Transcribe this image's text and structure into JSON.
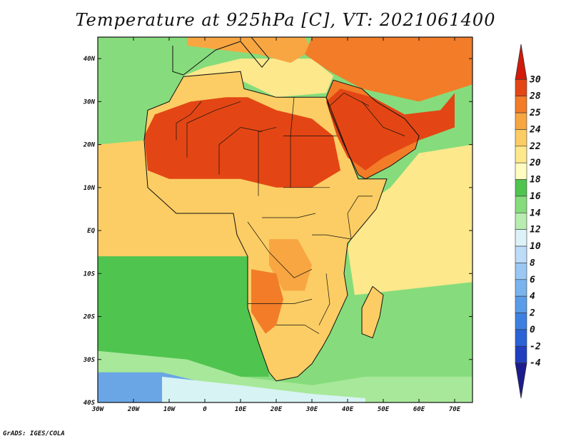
{
  "title": "Temperature at 925hPa [C], VT: 2021061400",
  "credit": "GrADS: IGES/COLA",
  "map": {
    "lon_range": [
      -30,
      75
    ],
    "lat_range": [
      -40,
      45
    ],
    "lon_ticks": [
      {
        "value": -30,
        "label": "30W"
      },
      {
        "value": -20,
        "label": "20W"
      },
      {
        "value": -10,
        "label": "10W"
      },
      {
        "value": 0,
        "label": "0"
      },
      {
        "value": 10,
        "label": "10E"
      },
      {
        "value": 20,
        "label": "20E"
      },
      {
        "value": 30,
        "label": "30E"
      },
      {
        "value": 40,
        "label": "40E"
      },
      {
        "value": 50,
        "label": "50E"
      },
      {
        "value": 60,
        "label": "60E"
      },
      {
        "value": 70,
        "label": "70E"
      }
    ],
    "lat_ticks": [
      {
        "value": 40,
        "label": "40N"
      },
      {
        "value": 30,
        "label": "30N"
      },
      {
        "value": 20,
        "label": "20N"
      },
      {
        "value": 10,
        "label": "10N"
      },
      {
        "value": 0,
        "label": "EQ"
      },
      {
        "value": -10,
        "label": "10S"
      },
      {
        "value": -20,
        "label": "20S"
      },
      {
        "value": -30,
        "label": "30S"
      },
      {
        "value": -40,
        "label": "40S"
      }
    ]
  },
  "colorbar": {
    "levels": [
      "-4",
      "-2",
      "0",
      "2",
      "4",
      "6",
      "8",
      "10",
      "12",
      "14",
      "16",
      "18",
      "20",
      "22",
      "24",
      "25",
      "28",
      "30"
    ],
    "colors": [
      "#1c1c8c",
      "#1f3fbf",
      "#2a63d6",
      "#3d80e0",
      "#5a9ce8",
      "#79b4ef",
      "#9ac8f3",
      "#bcdcf8",
      "#ddf2f8",
      "#b8ecb0",
      "#86dc7c",
      "#4fc44f",
      "#fffcc0",
      "#fde88c",
      "#fbcd64",
      "#f8a642",
      "#f27c28",
      "#e34614",
      "#d11a0a"
    ]
  },
  "colors": {
    "ocean_south_cold": "#6aa6e6",
    "ocean_south_cool": "#d7f3f3",
    "ocean_green": "#4fc44f",
    "ocean_light_green": "#a8e89a",
    "tropical_sea": "#fbcd64",
    "warm_sea": "#fde88c",
    "sahara_hot": "#e34614",
    "arabia_hot": "#e34614",
    "orange": "#f8a642",
    "deep_orange": "#f27c28",
    "boundaries": "#111111"
  },
  "regions": [
    {
      "name": "north-atlantic-cool",
      "color": "#86dc7c",
      "points": [
        [
          -30,
          45
        ],
        [
          -5,
          45
        ],
        [
          -8,
          37
        ],
        [
          -12,
          32
        ],
        [
          -18,
          28
        ],
        [
          -30,
          28
        ]
      ]
    },
    {
      "name": "mediterranean",
      "color": "#fde88c",
      "points": [
        [
          -6,
          36
        ],
        [
          0,
          38
        ],
        [
          10,
          40
        ],
        [
          20,
          40
        ],
        [
          30,
          40
        ],
        [
          36,
          36
        ],
        [
          34,
          32
        ],
        [
          20,
          31
        ],
        [
          10,
          35
        ],
        [
          0,
          35.5
        ]
      ]
    },
    {
      "name": "europe-warm",
      "color": "#f8a642",
      "points": [
        [
          -5,
          45
        ],
        [
          15,
          45
        ],
        [
          28,
          45
        ],
        [
          30,
          42
        ],
        [
          24,
          39
        ],
        [
          15,
          41
        ],
        [
          5,
          42
        ],
        [
          -5,
          43
        ]
      ]
    },
    {
      "name": "turkey-iran-hot",
      "color": "#f27c28",
      "points": [
        [
          30,
          45
        ],
        [
          75,
          45
        ],
        [
          75,
          34
        ],
        [
          60,
          30
        ],
        [
          44,
          33
        ],
        [
          35,
          37
        ],
        [
          28,
          41
        ]
      ]
    },
    {
      "name": "tropical-atlantic",
      "color": "#fbcd64",
      "points": [
        [
          -30,
          20
        ],
        [
          -17,
          21
        ],
        [
          -16,
          10
        ],
        [
          -8,
          4
        ],
        [
          8,
          4
        ],
        [
          9,
          -1
        ],
        [
          12,
          -6
        ],
        [
          -30,
          -6
        ]
      ]
    },
    {
      "name": "south-atlantic-green",
      "color": "#4fc44f",
      "points": [
        [
          -30,
          -6
        ],
        [
          12,
          -6
        ],
        [
          12,
          -12
        ],
        [
          14,
          -18
        ],
        [
          16,
          -26
        ],
        [
          18,
          -34
        ],
        [
          10,
          -34
        ],
        [
          -5,
          -30
        ],
        [
          -30,
          -28
        ]
      ]
    },
    {
      "name": "south-atlantic-cool",
      "color": "#a8e89a",
      "points": [
        [
          -30,
          -28
        ],
        [
          -5,
          -30
        ],
        [
          10,
          -34
        ],
        [
          30,
          -36
        ],
        [
          45,
          -34
        ],
        [
          75,
          -32
        ],
        [
          75,
          -40
        ],
        [
          -30,
          -40
        ]
      ]
    },
    {
      "name": "southern-ocean-blue",
      "color": "#6aa6e6",
      "points": [
        [
          -30,
          -33
        ],
        [
          -12,
          -33
        ],
        [
          -2,
          -35
        ],
        [
          5,
          -40
        ],
        [
          -30,
          -40
        ]
      ]
    },
    {
      "name": "southern-ocean-pale",
      "color": "#d7f3f3",
      "points": [
        [
          -12,
          -34
        ],
        [
          10,
          -36
        ],
        [
          30,
          -38
        ],
        [
          45,
          -39
        ],
        [
          45,
          -40
        ],
        [
          -12,
          -40
        ]
      ]
    },
    {
      "name": "indian-ocean-green",
      "color": "#86dc7c",
      "points": [
        [
          40,
          -15
        ],
        [
          75,
          -12
        ],
        [
          75,
          -34
        ],
        [
          45,
          -34
        ],
        [
          36,
          -28
        ]
      ]
    },
    {
      "name": "indian-ocean-warm",
      "color": "#fde88c",
      "points": [
        [
          42,
          -15
        ],
        [
          40,
          -4
        ],
        [
          45,
          6
        ],
        [
          52,
          10
        ],
        [
          60,
          18
        ],
        [
          75,
          20
        ],
        [
          75,
          -12
        ]
      ]
    },
    {
      "name": "africa-land",
      "color": "#fbcd64",
      "points": [
        [
          -17,
          21
        ],
        [
          -16,
          28
        ],
        [
          -10,
          30
        ],
        [
          -6,
          35.8
        ],
        [
          10,
          37
        ],
        [
          11,
          33
        ],
        [
          20,
          31
        ],
        [
          30,
          31
        ],
        [
          34,
          31
        ],
        [
          43,
          12
        ],
        [
          51,
          12
        ],
        [
          48,
          5
        ],
        [
          40,
          -3
        ],
        [
          39,
          -10
        ],
        [
          40,
          -15
        ],
        [
          35,
          -24
        ],
        [
          33,
          -27
        ],
        [
          30,
          -31
        ],
        [
          26,
          -34
        ],
        [
          20,
          -35
        ],
        [
          18,
          -33
        ],
        [
          15,
          -26
        ],
        [
          12,
          -18
        ],
        [
          12,
          -6
        ],
        [
          9,
          -1
        ],
        [
          8,
          4
        ],
        [
          -8,
          4
        ],
        [
          -16,
          10
        ]
      ]
    },
    {
      "name": "arabia-land",
      "color": "#f27c28",
      "points": [
        [
          34,
          31
        ],
        [
          36,
          35
        ],
        [
          44,
          33
        ],
        [
          48,
          30
        ],
        [
          56,
          26
        ],
        [
          60,
          22
        ],
        [
          59,
          19
        ],
        [
          52,
          15
        ],
        [
          45,
          12
        ],
        [
          43,
          13
        ],
        [
          39,
          20
        ],
        [
          35,
          28
        ]
      ]
    },
    {
      "name": "sahara-hot",
      "color": "#e34614",
      "points": [
        [
          -17,
          22
        ],
        [
          -14,
          27
        ],
        [
          -4,
          30
        ],
        [
          6,
          31
        ],
        [
          12,
          31
        ],
        [
          20,
          28
        ],
        [
          30,
          26
        ],
        [
          36,
          22
        ],
        [
          38,
          14
        ],
        [
          30,
          10
        ],
        [
          20,
          10
        ],
        [
          10,
          12
        ],
        [
          0,
          12
        ],
        [
          -10,
          12
        ],
        [
          -16,
          14
        ]
      ]
    },
    {
      "name": "arabia-hot",
      "color": "#e34614",
      "points": [
        [
          34,
          30
        ],
        [
          38,
          33
        ],
        [
          47,
          31
        ],
        [
          56,
          27
        ],
        [
          66,
          28
        ],
        [
          70,
          32
        ],
        [
          70,
          24
        ],
        [
          60,
          21
        ],
        [
          55,
          19
        ],
        [
          50,
          17
        ],
        [
          45,
          14
        ],
        [
          40,
          17
        ],
        [
          37,
          22
        ]
      ]
    },
    {
      "name": "congo-orange",
      "color": "#f8a642",
      "points": [
        [
          18,
          -2
        ],
        [
          26,
          -2
        ],
        [
          30,
          -8
        ],
        [
          28,
          -14
        ],
        [
          22,
          -14
        ],
        [
          18,
          -8
        ]
      ]
    },
    {
      "name": "southwest-africa-hot",
      "color": "#f27c28",
      "points": [
        [
          13,
          -9
        ],
        [
          20,
          -10
        ],
        [
          22,
          -16
        ],
        [
          20,
          -22
        ],
        [
          17,
          -24
        ],
        [
          13,
          -19
        ]
      ]
    },
    {
      "name": "madagascar",
      "color": "#fbcd64",
      "points": [
        [
          47,
          -13
        ],
        [
          50,
          -15
        ],
        [
          49,
          -20
        ],
        [
          47,
          -25
        ],
        [
          44,
          -24
        ],
        [
          44,
          -18
        ]
      ]
    }
  ],
  "coastlines": [
    {
      "name": "africa-coast",
      "points": [
        [
          -17,
          21
        ],
        [
          -16,
          28
        ],
        [
          -10,
          30
        ],
        [
          -6,
          35.8
        ],
        [
          10,
          37
        ],
        [
          11,
          33
        ],
        [
          20,
          31
        ],
        [
          30,
          31
        ],
        [
          34,
          31
        ],
        [
          43,
          12
        ],
        [
          51,
          12
        ],
        [
          48,
          5
        ],
        [
          40,
          -3
        ],
        [
          39,
          -10
        ],
        [
          40,
          -15
        ],
        [
          35,
          -24
        ],
        [
          33,
          -27
        ],
        [
          30,
          -31
        ],
        [
          26,
          -34
        ],
        [
          20,
          -35
        ],
        [
          18,
          -33
        ],
        [
          15,
          -26
        ],
        [
          12,
          -18
        ],
        [
          12,
          -6
        ],
        [
          9,
          -1
        ],
        [
          8,
          4
        ],
        [
          -8,
          4
        ],
        [
          -16,
          10
        ],
        [
          -17,
          21
        ]
      ]
    },
    {
      "name": "arabia-coast",
      "points": [
        [
          34,
          31
        ],
        [
          36,
          35
        ],
        [
          44,
          33
        ],
        [
          48,
          30
        ],
        [
          56,
          26
        ],
        [
          60,
          22
        ],
        [
          59,
          19
        ],
        [
          52,
          15
        ],
        [
          45,
          12
        ],
        [
          43,
          13
        ],
        [
          39,
          20
        ],
        [
          35,
          28
        ],
        [
          34,
          31
        ]
      ]
    },
    {
      "name": "madagascar-coast",
      "points": [
        [
          47,
          -13
        ],
        [
          50,
          -15
        ],
        [
          49,
          -20
        ],
        [
          47,
          -25
        ],
        [
          44,
          -24
        ],
        [
          44,
          -18
        ],
        [
          47,
          -13
        ]
      ]
    },
    {
      "name": "europe-coast",
      "points": [
        [
          -9,
          43
        ],
        [
          -9,
          37
        ],
        [
          -6,
          36.2
        ],
        [
          3,
          42
        ],
        [
          10,
          44
        ],
        [
          16,
          38
        ],
        [
          18,
          40
        ],
        [
          13,
          45
        ]
      ]
    }
  ],
  "borders": [
    [
      [
        -8,
        21
      ],
      [
        -8,
        25
      ],
      [
        -4,
        27
      ],
      [
        -1,
        30
      ]
    ],
    [
      [
        -5,
        17
      ],
      [
        -5,
        25
      ],
      [
        3,
        28
      ],
      [
        10,
        30
      ]
    ],
    [
      [
        4,
        13
      ],
      [
        4,
        20
      ],
      [
        10,
        24
      ],
      [
        16,
        23
      ]
    ],
    [
      [
        15,
        8
      ],
      [
        15,
        23
      ],
      [
        20,
        24
      ]
    ],
    [
      [
        24,
        10
      ],
      [
        24,
        22
      ],
      [
        25,
        31
      ]
    ],
    [
      [
        37,
        22
      ],
      [
        22,
        22
      ]
    ],
    [
      [
        22,
        10
      ],
      [
        35,
        10
      ]
    ],
    [
      [
        16,
        3
      ],
      [
        26,
        3
      ],
      [
        31,
        4
      ]
    ],
    [
      [
        12,
        2
      ],
      [
        18,
        -5
      ],
      [
        25,
        -11
      ],
      [
        30,
        -9
      ]
    ],
    [
      [
        12,
        -17
      ],
      [
        25,
        -17
      ],
      [
        30,
        -16
      ]
    ],
    [
      [
        20,
        -22
      ],
      [
        28,
        -22
      ],
      [
        32,
        -24
      ]
    ],
    [
      [
        34,
        -10
      ],
      [
        35,
        -17
      ],
      [
        32,
        -22
      ]
    ],
    [
      [
        30,
        -1
      ],
      [
        34,
        -1
      ],
      [
        41,
        -2
      ]
    ],
    [
      [
        41,
        -2
      ],
      [
        40,
        4
      ],
      [
        43,
        8
      ],
      [
        47,
        8
      ]
    ],
    [
      [
        35,
        29
      ],
      [
        39,
        32
      ],
      [
        46,
        29
      ]
    ],
    [
      [
        44,
        30
      ],
      [
        50,
        24
      ],
      [
        56,
        22
      ]
    ]
  ]
}
